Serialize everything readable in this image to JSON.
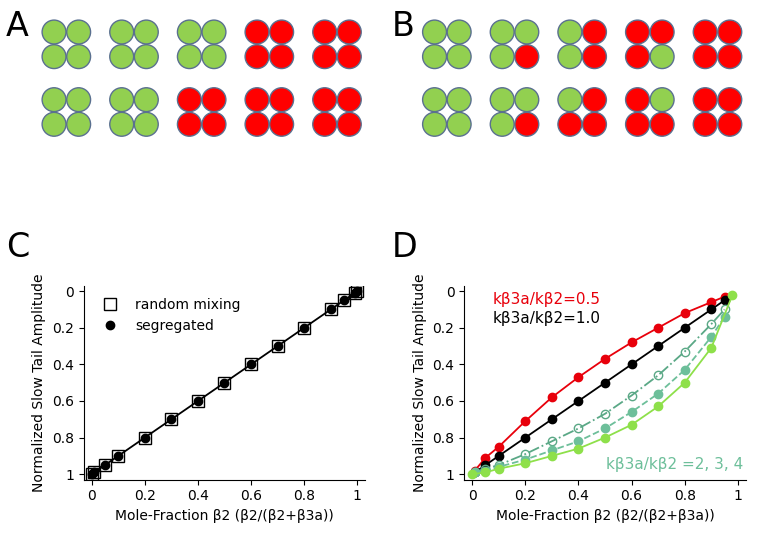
{
  "diagrams": [
    {
      "panel": "A",
      "tetramers": [
        [
          [
            "#92d050",
            "#92d050",
            "#92d050",
            "#92d050"
          ],
          [
            "#92d050",
            "#92d050",
            "#92d050",
            "#92d050"
          ],
          [
            "#92d050",
            "#92d050",
            "#92d050",
            "#92d050"
          ],
          [
            "#ff0000",
            "#ff0000",
            "#ff0000",
            "#ff0000"
          ],
          [
            "#ff0000",
            "#ff0000",
            "#ff0000",
            "#ff0000"
          ]
        ],
        [
          [
            "#92d050",
            "#92d050",
            "#92d050",
            "#92d050"
          ],
          [
            "#92d050",
            "#92d050",
            "#92d050",
            "#92d050"
          ],
          [
            "#ff0000",
            "#ff0000",
            "#ff0000",
            "#ff0000"
          ],
          [
            "#ff0000",
            "#ff0000",
            "#ff0000",
            "#ff0000"
          ],
          [
            "#ff0000",
            "#ff0000",
            "#ff0000",
            "#ff0000"
          ]
        ]
      ]
    },
    {
      "panel": "B",
      "tetramers": [
        [
          [
            "#92d050",
            "#92d050",
            "#92d050",
            "#92d050"
          ],
          [
            "#92d050",
            "#92d050",
            "#92d050",
            "#ff0000"
          ],
          [
            "#92d050",
            "#ff0000",
            "#92d050",
            "#ff0000"
          ],
          [
            "#ff0000",
            "#ff0000",
            "#ff0000",
            "#92d050"
          ],
          [
            "#ff0000",
            "#ff0000",
            "#ff0000",
            "#ff0000"
          ]
        ],
        [
          [
            "#92d050",
            "#92d050",
            "#92d050",
            "#92d050"
          ],
          [
            "#92d050",
            "#92d050",
            "#92d050",
            "#ff0000"
          ],
          [
            "#92d050",
            "#ff0000",
            "#ff0000",
            "#ff0000"
          ],
          [
            "#ff0000",
            "#92d050",
            "#ff0000",
            "#ff0000"
          ],
          [
            "#ff0000",
            "#ff0000",
            "#ff0000",
            "#ff0000"
          ]
        ]
      ]
    }
  ],
  "chart_data": [
    {
      "panel": "C",
      "type": "scatter",
      "x_label": "Mole-Fraction β2 (β2/(β2+β3a))",
      "y_label": "Normalized Slow Tail Amplitude",
      "xlim": [
        -0.03,
        1.03
      ],
      "ylim": [
        1.03,
        -0.03
      ],
      "xticks": [
        0,
        0.2,
        0.4,
        0.6,
        0.8,
        1
      ],
      "yticks": [
        0,
        0.2,
        0.4,
        0.6,
        0.8,
        1
      ],
      "legend": "upper left",
      "series": [
        {
          "type": "line",
          "color": "#000000",
          "line_style": "solid",
          "x": [
            0,
            1
          ],
          "values": [
            1,
            0
          ]
        },
        {
          "name": "random mixing",
          "type": "scatter",
          "color": "#000000",
          "marker": "open_square",
          "x": [
            0,
            0.01,
            0.05,
            0.1,
            0.2,
            0.3,
            0.4,
            0.5,
            0.6,
            0.7,
            0.8,
            0.9,
            0.95,
            0.99,
            1
          ],
          "values": [
            1,
            0.99,
            0.95,
            0.9,
            0.8,
            0.7,
            0.6,
            0.5,
            0.4,
            0.3,
            0.2,
            0.1,
            0.05,
            0.01,
            0
          ]
        },
        {
          "name": "segregated",
          "type": "scatter",
          "color": "#000000",
          "marker": "circle",
          "x": [
            0,
            0.01,
            0.05,
            0.1,
            0.2,
            0.3,
            0.4,
            0.5,
            0.6,
            0.7,
            0.8,
            0.9,
            0.95,
            0.99,
            1
          ],
          "values": [
            1,
            0.99,
            0.95,
            0.9,
            0.8,
            0.7,
            0.6,
            0.5,
            0.4,
            0.3,
            0.2,
            0.1,
            0.05,
            0.01,
            0
          ]
        }
      ]
    },
    {
      "panel": "D",
      "type": "line",
      "x_label": "Mole-Fraction β2 (β2/(β2+β3a))",
      "y_label": "Normalized Slow Tail Amplitude",
      "xlim": [
        -0.03,
        1.03
      ],
      "ylim": [
        1.03,
        -0.03
      ],
      "xticks": [
        0,
        0.2,
        0.4,
        0.6,
        0.8,
        1
      ],
      "yticks": [
        0,
        0.2,
        0.4,
        0.6,
        0.8,
        1
      ],
      "annotations": [
        {
          "text": "kβ3a/kβ2=0.5",
          "color": "#e8000b"
        },
        {
          "text": "kβ3a/kβ2=1.0",
          "color": "#000000"
        },
        {
          "text": "kβ3a/kβ2 =2, 3, 4",
          "color": "#6dbf9a"
        }
      ],
      "series": [
        {
          "color": "#e8000b",
          "line_style": "solid",
          "marker": "circle",
          "x": [
            0.01,
            0.05,
            0.1,
            0.2,
            0.3,
            0.4,
            0.5,
            0.6,
            0.7,
            0.8,
            0.9,
            0.95
          ],
          "values": [
            0.98,
            0.91,
            0.85,
            0.71,
            0.58,
            0.47,
            0.37,
            0.28,
            0.2,
            0.12,
            0.06,
            0.03
          ]
        },
        {
          "color": "#000000",
          "line_style": "solid",
          "marker": "circle",
          "x": [
            0.01,
            0.05,
            0.1,
            0.2,
            0.3,
            0.4,
            0.5,
            0.6,
            0.7,
            0.8,
            0.9,
            0.95
          ],
          "values": [
            0.99,
            0.95,
            0.9,
            0.8,
            0.7,
            0.6,
            0.5,
            0.4,
            0.3,
            0.2,
            0.1,
            0.05
          ]
        },
        {
          "color": "#5aa886",
          "line_style": "dashdot",
          "marker": "open_circle",
          "x": [
            0.01,
            0.05,
            0.1,
            0.2,
            0.3,
            0.4,
            0.5,
            0.6,
            0.7,
            0.8,
            0.9,
            0.95
          ],
          "values": [
            0.99,
            0.97,
            0.95,
            0.89,
            0.82,
            0.75,
            0.67,
            0.57,
            0.46,
            0.33,
            0.18,
            0.1
          ]
        },
        {
          "color": "#6dbf9a",
          "line_style": "dashed",
          "marker": "circle",
          "x": [
            0.01,
            0.05,
            0.1,
            0.2,
            0.3,
            0.4,
            0.5,
            0.6,
            0.7,
            0.8,
            0.9,
            0.95
          ],
          "values": [
            0.99,
            0.98,
            0.96,
            0.92,
            0.87,
            0.82,
            0.75,
            0.66,
            0.56,
            0.43,
            0.25,
            0.14
          ]
        },
        {
          "color": "#8ee04a",
          "line_style": "solid",
          "marker": "circle",
          "x": [
            0,
            0.05,
            0.1,
            0.2,
            0.3,
            0.4,
            0.5,
            0.6,
            0.7,
            0.8,
            0.9,
            0.98
          ],
          "values": [
            1,
            0.99,
            0.97,
            0.94,
            0.9,
            0.86,
            0.8,
            0.73,
            0.63,
            0.5,
            0.31,
            0.02
          ]
        }
      ]
    }
  ]
}
